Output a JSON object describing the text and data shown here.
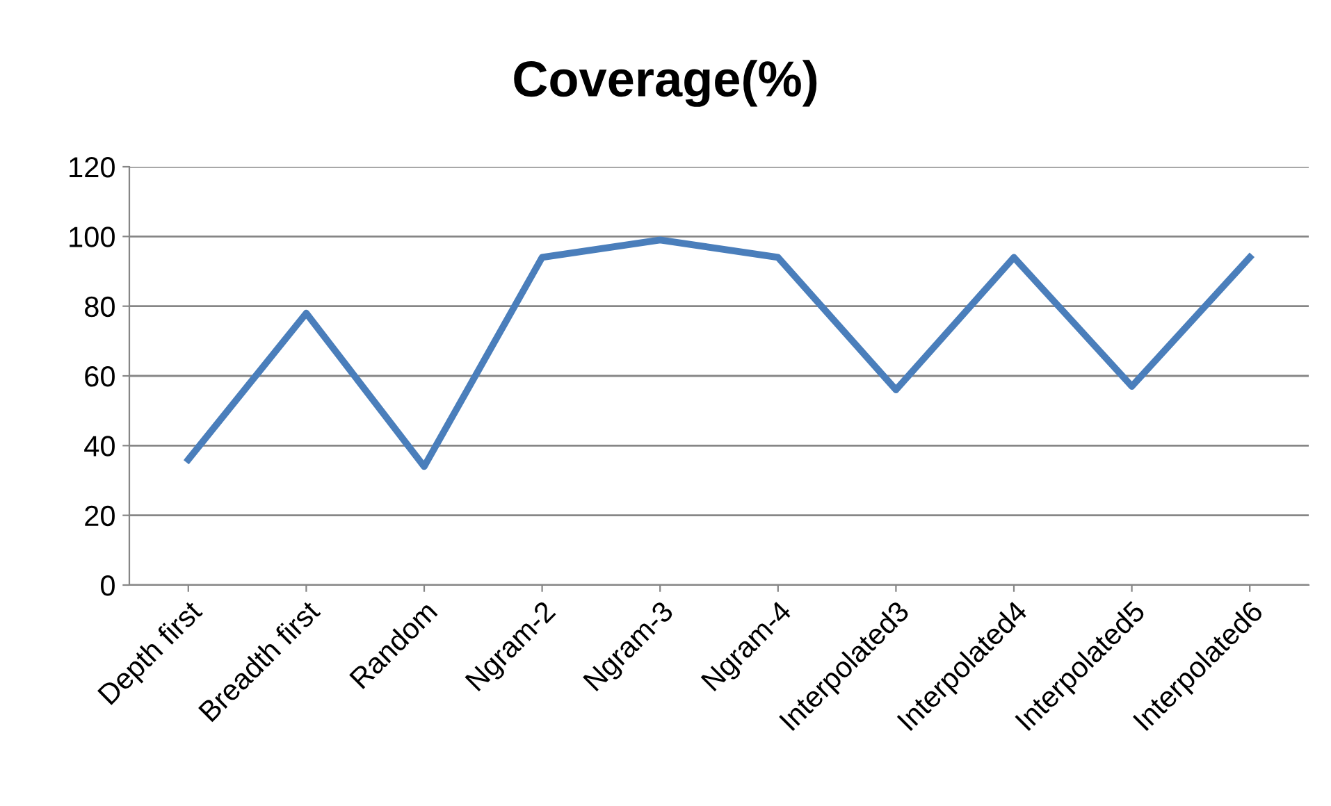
{
  "chart_data": {
    "type": "line",
    "title": "Coverage(%)",
    "categories": [
      "Depth first",
      "Breadth first",
      "Random",
      "Ngram-2",
      "Ngram-3",
      "Ngram-4",
      "Interpolated3",
      "Interpolated4",
      "Interpolated5",
      "Interpolated6"
    ],
    "series": [
      {
        "color": "#4a7ebb",
        "values": [
          36,
          78,
          34,
          94,
          99,
          94,
          56,
          94,
          57,
          94
        ]
      }
    ],
    "ylim": [
      0,
      120
    ],
    "yticks": [
      0,
      20,
      40,
      60,
      80,
      100,
      120
    ],
    "grid": "y",
    "legend": false,
    "marker": "none",
    "line_style": "solid"
  }
}
